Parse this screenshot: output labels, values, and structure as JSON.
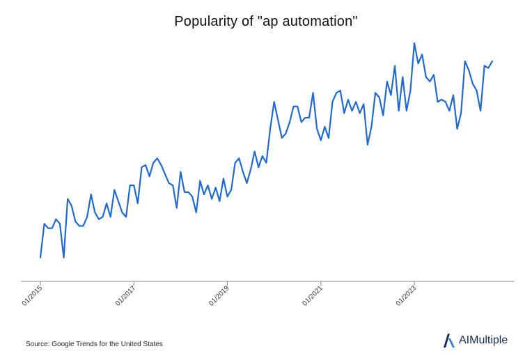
{
  "title": "Popularity of \"ap automation\"",
  "source": "Source: Google Trends for the United States",
  "brand": {
    "name": "AIMultiple",
    "logo_icon": "aimultiple-logo-icon"
  },
  "colors": {
    "line": "#1f6ad2",
    "axis": "#888888",
    "logo_dark": "#1a2a4a",
    "logo_blue": "#2f7de1"
  },
  "chart_data": {
    "type": "line",
    "title": "Popularity of \"ap automation\"",
    "xlabel": "",
    "ylabel": "",
    "grid": false,
    "legend": "none",
    "x_tick_labels": [
      "01/2015",
      "01/2017",
      "01/2019",
      "01/2021",
      "01/2023"
    ],
    "x_range": [
      "2015-01",
      "2024-09"
    ],
    "ylim": [
      0,
      100
    ],
    "series": [
      {
        "name": "",
        "x": [
          "2015-01",
          "2015-02",
          "2015-03",
          "2015-04",
          "2015-05",
          "2015-06",
          "2015-07",
          "2015-08",
          "2015-09",
          "2015-10",
          "2015-11",
          "2015-12",
          "2016-01",
          "2016-02",
          "2016-03",
          "2016-04",
          "2016-05",
          "2016-06",
          "2016-07",
          "2016-08",
          "2016-09",
          "2016-10",
          "2016-11",
          "2016-12",
          "2017-01",
          "2017-02",
          "2017-03",
          "2017-04",
          "2017-05",
          "2017-06",
          "2017-07",
          "2017-08",
          "2017-09",
          "2017-10",
          "2017-11",
          "2017-12",
          "2018-01",
          "2018-02",
          "2018-03",
          "2018-04",
          "2018-05",
          "2018-06",
          "2018-07",
          "2018-08",
          "2018-09",
          "2018-10",
          "2018-11",
          "2018-12",
          "2019-01",
          "2019-02",
          "2019-03",
          "2019-04",
          "2019-05",
          "2019-06",
          "2019-07",
          "2019-08",
          "2019-09",
          "2019-10",
          "2019-11",
          "2019-12",
          "2020-01",
          "2020-02",
          "2020-03",
          "2020-04",
          "2020-05",
          "2020-06",
          "2020-07",
          "2020-08",
          "2020-09",
          "2020-10",
          "2020-11",
          "2020-12",
          "2021-01",
          "2021-02",
          "2021-03",
          "2021-04",
          "2021-05",
          "2021-06",
          "2021-07",
          "2021-08",
          "2021-09",
          "2021-10",
          "2021-11",
          "2021-12",
          "2022-01",
          "2022-02",
          "2022-03",
          "2022-04",
          "2022-05",
          "2022-06",
          "2022-07",
          "2022-08",
          "2022-09",
          "2022-10",
          "2022-11",
          "2022-12",
          "2023-01",
          "2023-02",
          "2023-03",
          "2023-04",
          "2023-05",
          "2023-06",
          "2023-07",
          "2023-08",
          "2023-09",
          "2023-10",
          "2023-11",
          "2023-12",
          "2024-01",
          "2024-02",
          "2024-03",
          "2024-04",
          "2024-05",
          "2024-06",
          "2024-07",
          "2024-08",
          "2024-09"
        ],
        "values": [
          5,
          20,
          18,
          18,
          22,
          20,
          5,
          31,
          28,
          21,
          19,
          19,
          23,
          33,
          25,
          22,
          23,
          29,
          23,
          35,
          30,
          25,
          23,
          37,
          37,
          29,
          45,
          46,
          41,
          47,
          49,
          46,
          42,
          38,
          37,
          27,
          43,
          34,
          34,
          32,
          25,
          39,
          33,
          37,
          31,
          36,
          30,
          40,
          32,
          35,
          47,
          49,
          43,
          38,
          44,
          52,
          45,
          50,
          47,
          62,
          74,
          66,
          58,
          60,
          65,
          72,
          72,
          65,
          67,
          67,
          78,
          62,
          57,
          63,
          58,
          74,
          78,
          79,
          69,
          75,
          70,
          74,
          69,
          73,
          55,
          63,
          78,
          76,
          68,
          83,
          77,
          90,
          70,
          85,
          70,
          79,
          100,
          91,
          95,
          85,
          83,
          86,
          74,
          75,
          74,
          70,
          77,
          62,
          69,
          92,
          88,
          82,
          79,
          70,
          90,
          89,
          92
        ]
      }
    ]
  }
}
